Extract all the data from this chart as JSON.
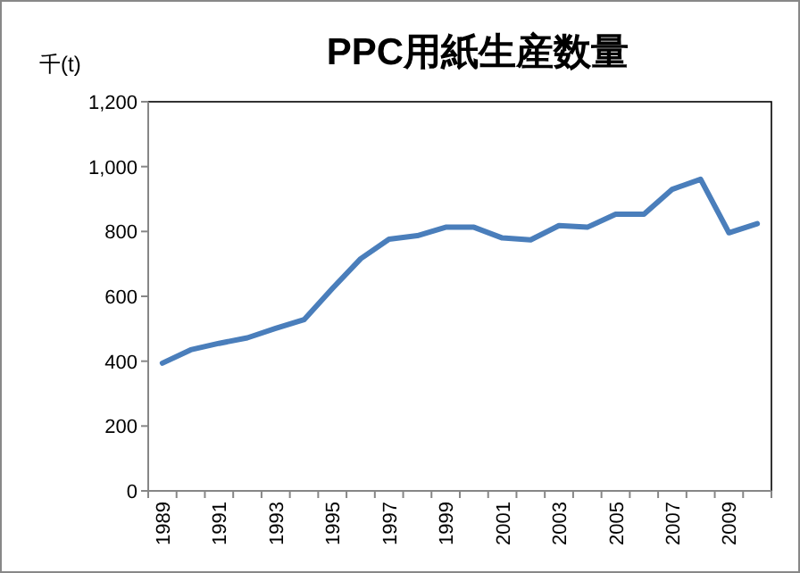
{
  "chart_data": {
    "type": "line",
    "title": "PPC用紙生産数量",
    "ylabel": "千(t)",
    "categories": [
      "1989",
      null,
      "1991",
      null,
      "1993",
      null,
      "1995",
      null,
      "1997",
      null,
      "1999",
      null,
      "2001",
      null,
      "2003",
      null,
      "2005",
      null,
      "2007",
      null,
      "2009",
      null
    ],
    "series": [
      {
        "color": "#4a7ebb",
        "values": [
          394,
          435,
          455,
          472,
          501,
          528,
          624,
          716,
          776,
          787,
          813,
          813,
          780,
          774,
          818,
          813,
          853,
          853,
          930,
          961,
          796,
          824
        ]
      }
    ],
    "ylim": [
      0,
      1200
    ],
    "yticks": [
      0,
      200,
      400,
      600,
      800,
      {
        "value": 1000,
        "label": "1,000"
      },
      {
        "value": 1200,
        "label": "1,200"
      }
    ],
    "grid": false,
    "marker": "none",
    "line_style": "solid"
  }
}
